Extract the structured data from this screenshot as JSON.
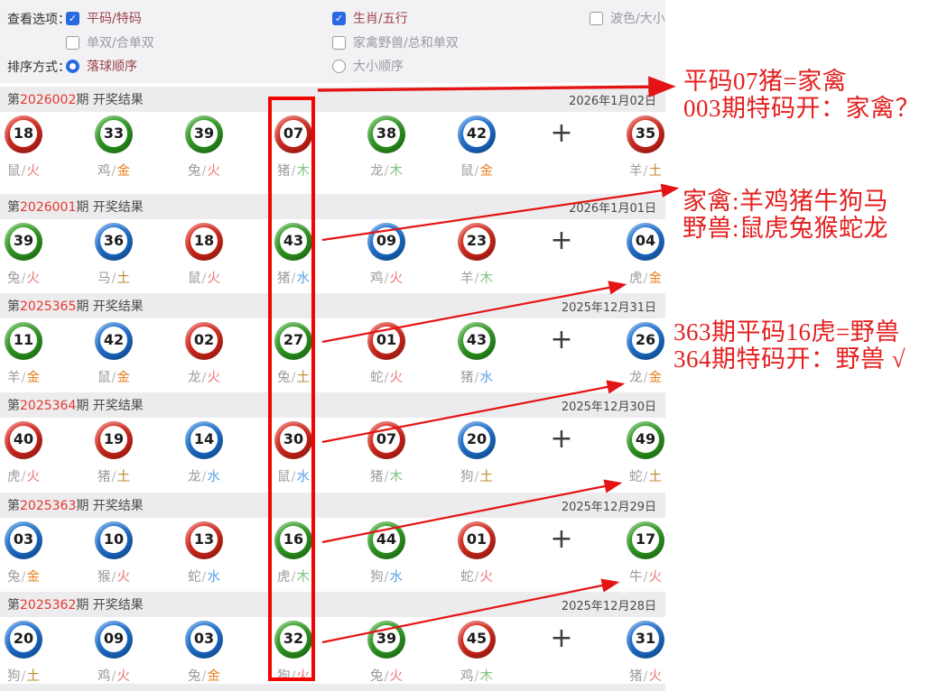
{
  "options": {
    "view_label": "查看选项：",
    "sort_label": "排序方式：",
    "checkboxes": [
      {
        "label": "平码/特码",
        "checked": true
      },
      {
        "label": "生肖/五行",
        "checked": true
      },
      {
        "label": "波色/大小",
        "checked": false
      },
      {
        "label": "单双/合单双",
        "checked": false
      },
      {
        "label": "家禽野兽/总和单双",
        "checked": false
      }
    ],
    "radios": [
      {
        "label": "落球顺序",
        "checked": true
      },
      {
        "label": "大小顺序",
        "checked": false
      }
    ]
  },
  "header_text": {
    "prefix": "第",
    "suffix": "期 开奖结果"
  },
  "plus_label": "+",
  "element_colors": {
    "火": "#f07474",
    "金": "#e8821e",
    "木": "#82c482",
    "水": "#58a0e8",
    "土": "#bd8a2e"
  },
  "ball_colors": {
    "red": "#d6261a",
    "green": "#2c9a1e",
    "blue": "#1b6fd0"
  },
  "rows": [
    {
      "period": "2026002",
      "date": "2026年1月02日",
      "balls": [
        {
          "num": "18",
          "color": "red",
          "zodiac": "鼠",
          "element": "火"
        },
        {
          "num": "33",
          "color": "green",
          "zodiac": "鸡",
          "element": "金"
        },
        {
          "num": "39",
          "color": "green",
          "zodiac": "兔",
          "element": "火"
        },
        {
          "num": "07",
          "color": "red",
          "zodiac": "猪",
          "element": "木"
        },
        {
          "num": "38",
          "color": "green",
          "zodiac": "龙",
          "element": "木"
        },
        {
          "num": "42",
          "color": "blue",
          "zodiac": "鼠",
          "element": "金"
        }
      ],
      "special": {
        "num": "35",
        "color": "red",
        "zodiac": "羊",
        "element": "土"
      }
    },
    {
      "period": "2026001",
      "date": "2026年1月01日",
      "balls": [
        {
          "num": "39",
          "color": "green",
          "zodiac": "兔",
          "element": "火"
        },
        {
          "num": "36",
          "color": "blue",
          "zodiac": "马",
          "element": "土"
        },
        {
          "num": "18",
          "color": "red",
          "zodiac": "鼠",
          "element": "火"
        },
        {
          "num": "43",
          "color": "green",
          "zodiac": "猪",
          "element": "水"
        },
        {
          "num": "09",
          "color": "blue",
          "zodiac": "鸡",
          "element": "火"
        },
        {
          "num": "23",
          "color": "red",
          "zodiac": "羊",
          "element": "木"
        }
      ],
      "special": {
        "num": "04",
        "color": "blue",
        "zodiac": "虎",
        "element": "金"
      }
    },
    {
      "period": "2025365",
      "date": "2025年12月31日",
      "balls": [
        {
          "num": "11",
          "color": "green",
          "zodiac": "羊",
          "element": "金"
        },
        {
          "num": "42",
          "color": "blue",
          "zodiac": "鼠",
          "element": "金"
        },
        {
          "num": "02",
          "color": "red",
          "zodiac": "龙",
          "element": "火"
        },
        {
          "num": "27",
          "color": "green",
          "zodiac": "兔",
          "element": "土"
        },
        {
          "num": "01",
          "color": "red",
          "zodiac": "蛇",
          "element": "火"
        },
        {
          "num": "43",
          "color": "green",
          "zodiac": "猪",
          "element": "水"
        }
      ],
      "special": {
        "num": "26",
        "color": "blue",
        "zodiac": "龙",
        "element": "金"
      }
    },
    {
      "period": "2025364",
      "date": "2025年12月30日",
      "balls": [
        {
          "num": "40",
          "color": "red",
          "zodiac": "虎",
          "element": "火"
        },
        {
          "num": "19",
          "color": "red",
          "zodiac": "猪",
          "element": "土"
        },
        {
          "num": "14",
          "color": "blue",
          "zodiac": "龙",
          "element": "水"
        },
        {
          "num": "30",
          "color": "red",
          "zodiac": "鼠",
          "element": "水"
        },
        {
          "num": "07",
          "color": "red",
          "zodiac": "猪",
          "element": "木"
        },
        {
          "num": "20",
          "color": "blue",
          "zodiac": "狗",
          "element": "土"
        }
      ],
      "special": {
        "num": "49",
        "color": "green",
        "zodiac": "蛇",
        "element": "土"
      }
    },
    {
      "period": "2025363",
      "date": "2025年12月29日",
      "balls": [
        {
          "num": "03",
          "color": "blue",
          "zodiac": "兔",
          "element": "金"
        },
        {
          "num": "10",
          "color": "blue",
          "zodiac": "猴",
          "element": "火"
        },
        {
          "num": "13",
          "color": "red",
          "zodiac": "蛇",
          "element": "水"
        },
        {
          "num": "16",
          "color": "green",
          "zodiac": "虎",
          "element": "木"
        },
        {
          "num": "44",
          "color": "green",
          "zodiac": "狗",
          "element": "水"
        },
        {
          "num": "01",
          "color": "red",
          "zodiac": "蛇",
          "element": "火"
        }
      ],
      "special": {
        "num": "17",
        "color": "green",
        "zodiac": "牛",
        "element": "火"
      }
    },
    {
      "period": "2025362",
      "date": "2025年12月28日",
      "balls": [
        {
          "num": "20",
          "color": "blue",
          "zodiac": "狗",
          "element": "土"
        },
        {
          "num": "09",
          "color": "blue",
          "zodiac": "鸡",
          "element": "火"
        },
        {
          "num": "03",
          "color": "blue",
          "zodiac": "兔",
          "element": "金"
        },
        {
          "num": "32",
          "color": "green",
          "zodiac": "狗",
          "element": "火"
        },
        {
          "num": "39",
          "color": "green",
          "zodiac": "兔",
          "element": "火"
        },
        {
          "num": "45",
          "color": "red",
          "zodiac": "鸡",
          "element": "木"
        }
      ],
      "special": {
        "num": "31",
        "color": "blue",
        "zodiac": "猪",
        "element": "火"
      }
    }
  ],
  "annotations": [
    {
      "line1": "平码07猪=家禽",
      "line2": "003期特码开：家禽？"
    },
    {
      "line1": "家禽:羊鸡猪牛狗马",
      "line2": "野兽:鼠虎兔猴蛇龙"
    },
    {
      "line1": "363期平码16虎=野兽",
      "line2": "364期特码开：野兽 √"
    }
  ],
  "accent_colors": {
    "annotation_red": "#e41f1f",
    "checkbox_blue": "#2a6ae0",
    "period_red": "#e6382e"
  }
}
